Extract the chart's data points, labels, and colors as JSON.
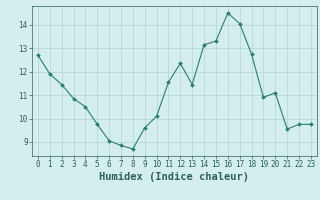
{
  "x": [
    0,
    1,
    2,
    3,
    4,
    5,
    6,
    7,
    8,
    9,
    10,
    11,
    12,
    13,
    14,
    15,
    16,
    17,
    18,
    19,
    20,
    21,
    22,
    23
  ],
  "y": [
    12.7,
    11.9,
    11.45,
    10.85,
    10.5,
    9.75,
    9.05,
    8.85,
    8.7,
    9.6,
    10.1,
    11.55,
    12.35,
    11.45,
    13.15,
    13.3,
    14.5,
    14.05,
    12.75,
    10.9,
    11.1,
    9.55,
    9.75,
    9.75
  ],
  "xlabel": "Humidex (Indice chaleur)",
  "xticks": [
    0,
    1,
    2,
    3,
    4,
    5,
    6,
    7,
    8,
    9,
    10,
    11,
    12,
    13,
    14,
    15,
    16,
    17,
    18,
    19,
    20,
    21,
    22,
    23
  ],
  "yticks": [
    9,
    10,
    11,
    12,
    13,
    14
  ],
  "ylim": [
    8.4,
    14.8
  ],
  "xlim": [
    -0.5,
    23.5
  ],
  "line_color": "#2d7d6e",
  "marker_color": "#2d7d6e",
  "bg_color": "#d4eeee",
  "grid_color": "#b8d8d8",
  "tick_label_color": "#2d5f5f",
  "axis_label_color": "#2d5f5f",
  "tick_fontsize": 5.5,
  "xlabel_fontsize": 7.5
}
